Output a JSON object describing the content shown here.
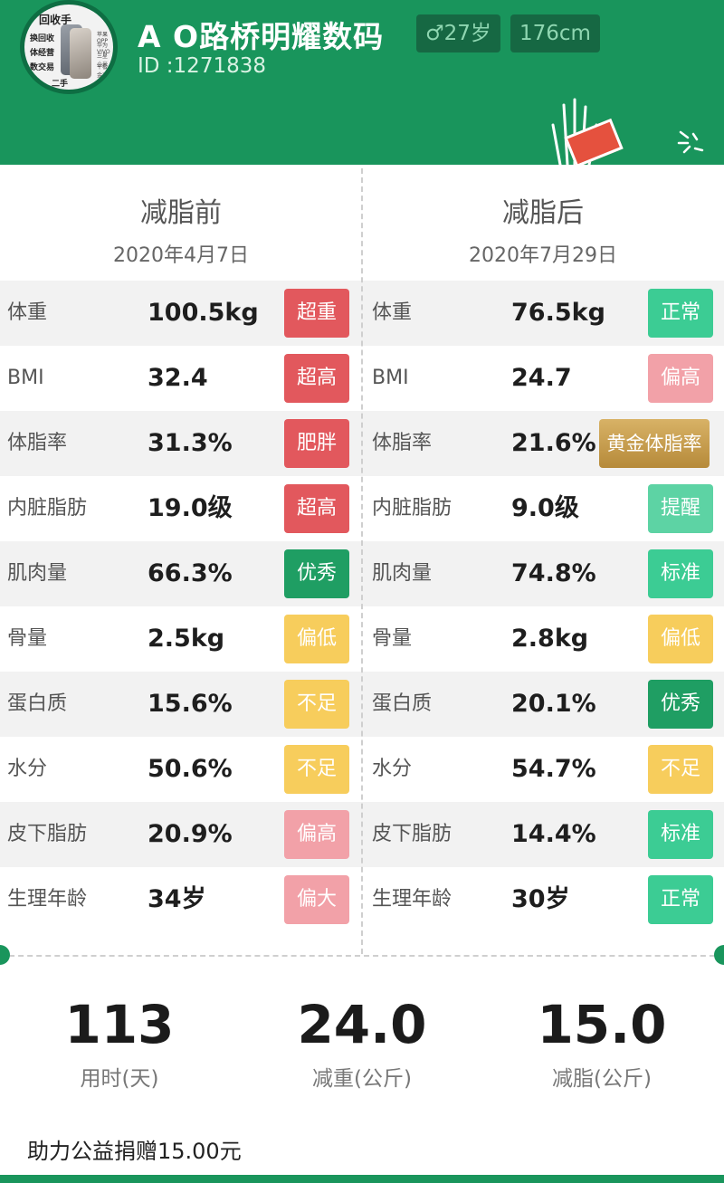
{
  "profile": {
    "name": "A O路桥明耀数码",
    "age": "♂27岁",
    "height": "176cm",
    "user_id": "ID :1271838",
    "avatar_texts": [
      "回收手",
      "换回收",
      "体经营",
      "数交易",
      "二手"
    ],
    "avatar_sub": [
      "苹果 OPP",
      "华为 VIVO",
      "三星 小米",
      "平板 金立"
    ]
  },
  "before": {
    "title": "减脂前",
    "date": "2020年4月7日"
  },
  "after": {
    "title": "减脂后",
    "date": "2020年7月29日"
  },
  "metrics": [
    {
      "label": "体重",
      "before_value": "100.5kg",
      "before_status": "超重",
      "after_value": "76.5kg",
      "after_status": "正常"
    },
    {
      "label": "BMI",
      "before_value": "32.4",
      "before_status": "超高",
      "after_value": "24.7",
      "after_status": "偏高"
    },
    {
      "label": "体脂率",
      "before_value": "31.3%",
      "before_status": "肥胖",
      "after_value": "21.6%",
      "after_status": "黄金体脂率"
    },
    {
      "label": "内脏脂肪",
      "before_value": "19.0级",
      "before_status": "超高",
      "after_value": "9.0级",
      "after_status": "提醒"
    },
    {
      "label": "肌肉量",
      "before_value": "66.3%",
      "before_status": "优秀",
      "after_value": "74.8%",
      "after_status": "标准"
    },
    {
      "label": "骨量",
      "before_value": "2.5kg",
      "before_status": "偏低",
      "after_value": "2.8kg",
      "after_status": "偏低"
    },
    {
      "label": "蛋白质",
      "before_value": "15.6%",
      "before_status": "不足",
      "after_value": "20.1%",
      "after_status": "优秀"
    },
    {
      "label": "水分",
      "before_value": "50.6%",
      "before_status": "不足",
      "after_value": "54.7%",
      "after_status": "不足"
    },
    {
      "label": "皮下脂肪",
      "before_value": "20.9%",
      "before_status": "偏高",
      "after_value": "14.4%",
      "after_status": "标准"
    },
    {
      "label": "生理年龄",
      "before_value": "34岁",
      "before_status": "偏大",
      "after_value": "30岁",
      "after_status": "正常"
    }
  ],
  "status_colors": {
    "超重": "#e2585d",
    "超高": "#e2585d",
    "肥胖": "#e2585d",
    "偏高": "#f2a1a8",
    "偏大": "#f2a1a8",
    "优秀": "#1f9e63",
    "标准": "#3ccc94",
    "正常": "#3ccc94",
    "提醒": "#5dd3a4",
    "偏低": "#f7cd5c",
    "不足": "#f7cd5c",
    "黄金体脂率": "#c49a4a"
  },
  "summary": [
    {
      "value": "113",
      "label": "用时(天)"
    },
    {
      "value": "24.0",
      "label": "减重(公斤)"
    },
    {
      "value": "15.0",
      "label": "减脂(公斤)"
    }
  ],
  "donation": "助力公益捐赠15.00元"
}
